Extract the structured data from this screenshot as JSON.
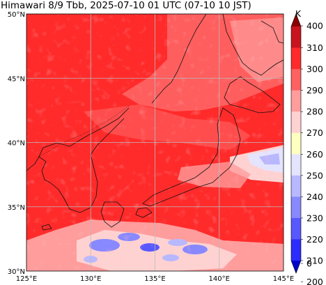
{
  "title": "Himawari 8/9 Tbb, 2025-07-10 01 UTC (07-10 10 JST)",
  "map": {
    "lon_range": [
      125,
      145
    ],
    "lat_range": [
      30,
      50
    ],
    "lon_ticks": [
      "125°E",
      "130°E",
      "135°E",
      "140°E",
      "145°E"
    ],
    "lat_ticks": [
      "50°N",
      "45°N",
      "40°N",
      "35°N",
      "30°N"
    ],
    "gridlines": true,
    "base_color": "#ff2b2b"
  },
  "colorbar": {
    "unit": "K",
    "levels": [
      "400",
      "310",
      "300",
      "290",
      "280",
      "270",
      "260",
      "250",
      "240",
      "230",
      "220",
      "210",
      "200",
      "0"
    ],
    "colors": [
      "#8b0000",
      "#c8141e",
      "#ff2b2b",
      "#ff6060",
      "#ff9c9c",
      "#ffd2d2",
      "#ffffc0",
      "#e4e4ff",
      "#b8b8ff",
      "#8888ff",
      "#5858ff",
      "#2c2cff",
      "#0000cd"
    ],
    "extend": "both"
  }
}
